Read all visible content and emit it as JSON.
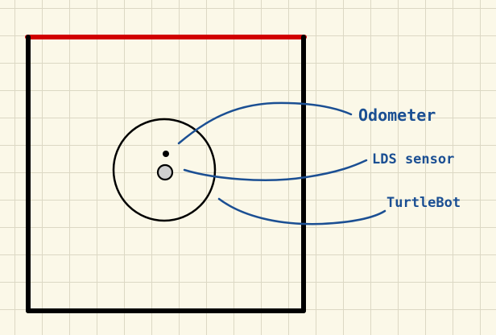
{
  "labels": {
    "odometer": "Odometer",
    "lds_sensor": "LDS sensor",
    "turtlebot": "TurtleBot"
  },
  "colors": {
    "background": "#fbf8e8",
    "grid": "#dcd8c4",
    "wall": "#000000",
    "top_wall": "#d10000",
    "annotation": "#1b4f93",
    "sensor_fill": "#cfcfcf"
  }
}
